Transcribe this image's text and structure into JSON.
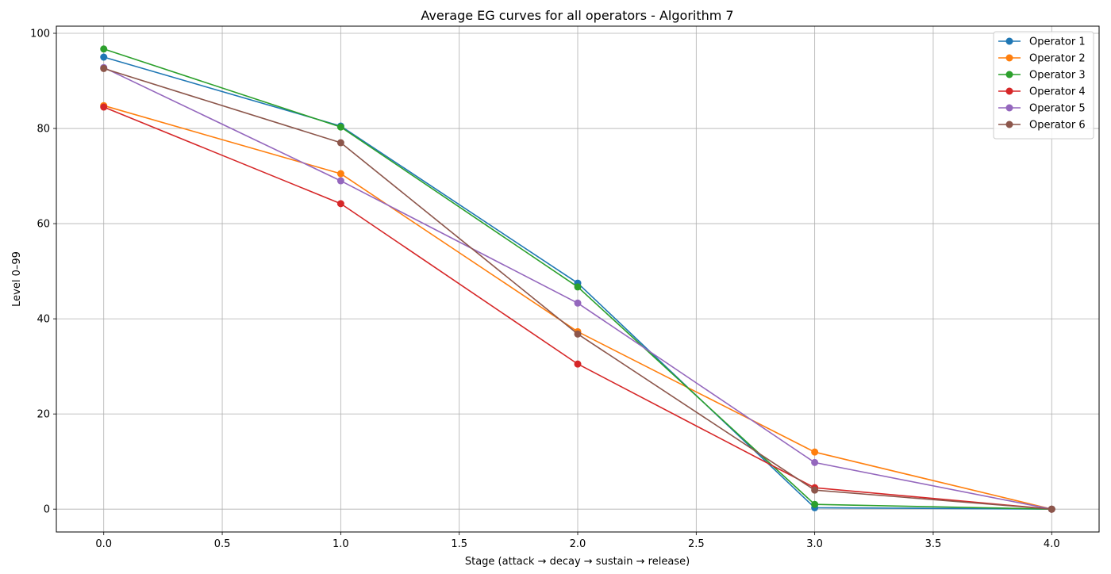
{
  "chart_data": {
    "type": "line",
    "title": "Average EG curves for all operators - Algorithm 7",
    "xlabel": "Stage (attack → decay → sustain → release)",
    "ylabel": "Level 0–99",
    "x": [
      0,
      1,
      2,
      3,
      4
    ],
    "xlim": [
      -0.2,
      4.2
    ],
    "ylim": [
      -4.8,
      101.5
    ],
    "xticks": [
      0.0,
      0.5,
      1.0,
      1.5,
      2.0,
      2.5,
      3.0,
      3.5,
      4.0
    ],
    "xtick_labels": [
      "0.0",
      "0.5",
      "1.0",
      "1.5",
      "2.0",
      "2.5",
      "3.0",
      "3.5",
      "4.0"
    ],
    "yticks": [
      0,
      20,
      40,
      60,
      80,
      100
    ],
    "ytick_labels": [
      "0",
      "20",
      "40",
      "60",
      "80",
      "100"
    ],
    "grid": true,
    "legend_position": "top-right",
    "series": [
      {
        "name": "Operator 1",
        "color": "#1f77b4",
        "values": [
          95.0,
          80.5,
          47.5,
          0.3,
          0.0
        ]
      },
      {
        "name": "Operator 2",
        "color": "#ff7f0e",
        "values": [
          84.8,
          70.5,
          37.3,
          12.0,
          0.0
        ]
      },
      {
        "name": "Operator 3",
        "color": "#2ca02c",
        "values": [
          96.7,
          80.3,
          46.7,
          1.0,
          0.0
        ]
      },
      {
        "name": "Operator 4",
        "color": "#d62728",
        "values": [
          84.5,
          64.2,
          30.5,
          4.5,
          0.0
        ]
      },
      {
        "name": "Operator 5",
        "color": "#9467bd",
        "values": [
          92.8,
          69.0,
          43.3,
          9.8,
          0.0
        ]
      },
      {
        "name": "Operator 6",
        "color": "#8c564b",
        "values": [
          92.6,
          77.0,
          36.8,
          4.0,
          0.0
        ]
      }
    ]
  }
}
